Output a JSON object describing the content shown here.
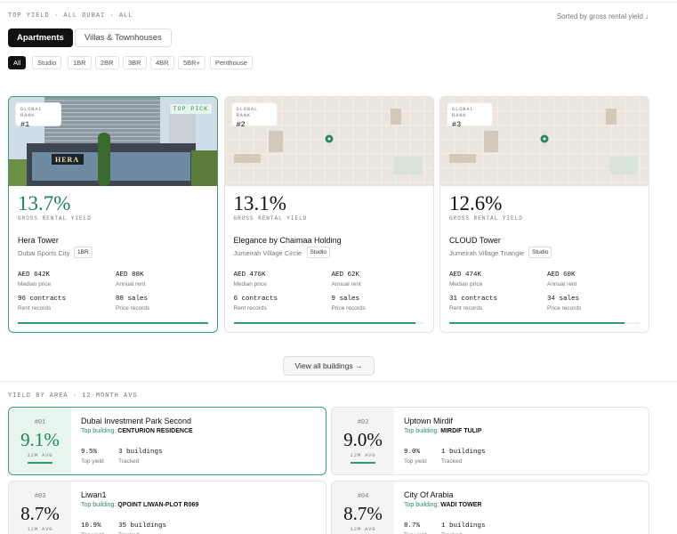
{
  "header": {
    "breadcrumb": "TOP YIELD · ALL DUBAI · ALL",
    "sort": "Sorted by gross rental yield ↓"
  },
  "tabs": [
    "Apartments",
    "Villas & Townhouses"
  ],
  "filters": [
    "All",
    "Studio",
    "1BR",
    "2BR",
    "3BR",
    "4BR",
    "5BR+",
    "Penthouse"
  ],
  "cards": [
    {
      "rank_label": "GLOBAL RANK",
      "rank": "#1",
      "badge": "TOP PICK",
      "photo_sign": "HERA",
      "yield": "13.7%",
      "yield_label": "GROSS RENTAL YIELD",
      "name": "Hera Tower",
      "location": "Dubai Sports City",
      "type": "1BR",
      "stats": [
        [
          "AED 642K",
          "Median price"
        ],
        [
          "AED 88K",
          "Annual rent"
        ],
        [
          "96 contracts",
          "Rent records"
        ],
        [
          "88 sales",
          "Price records"
        ]
      ]
    },
    {
      "rank_label": "GLOBAL RANK",
      "rank": "#2",
      "yield": "13.1%",
      "yield_label": "GROSS RENTAL YIELD",
      "name": "Elegance by Chaimaa Holding",
      "location": "Jumeirah Village Circle",
      "type": "Studio",
      "stats": [
        [
          "AED 476K",
          "Median price"
        ],
        [
          "AED 62K",
          "Annual rent"
        ],
        [
          "6 contracts",
          "Rent records"
        ],
        [
          "9 sales",
          "Price records"
        ]
      ]
    },
    {
      "rank_label": "GLOBAL RANK",
      "rank": "#3",
      "yield": "12.6%",
      "yield_label": "GROSS RENTAL YIELD",
      "name": "CLOUD Tower",
      "location": "Jumeirah Village Triangle",
      "type": "Studio",
      "stats": [
        [
          "AED 474K",
          "Median price"
        ],
        [
          "AED 60K",
          "Annual rent"
        ],
        [
          "31 contracts",
          "Rent records"
        ],
        [
          "34 sales",
          "Price records"
        ]
      ]
    }
  ],
  "view_all": "View all buildings →",
  "area_section": {
    "title": "YIELD BY AREA · 12-MONTH AVG",
    "areas": [
      {
        "rank": "#01",
        "yield": "9.1%",
        "avg_label": "12M AVG",
        "name": "Dubai Investment Park Second",
        "top_prefix": "Top building:",
        "top_building": "CENTURION RESIDENCE",
        "top_yield": "9.5%",
        "top_yield_label": "Top yield",
        "buildings": "3 buildings",
        "buildings_label": "Tracked"
      },
      {
        "rank": "#02",
        "yield": "9.0%",
        "avg_label": "12M AVG",
        "name": "Uptown Mirdif",
        "top_prefix": "Top building:",
        "top_building": "MIRDIF TULIP",
        "top_yield": "9.0%",
        "top_yield_label": "Top yield",
        "buildings": "1 buildings",
        "buildings_label": "Tracked"
      },
      {
        "rank": "#03",
        "yield": "8.7%",
        "avg_label": "12M AVG",
        "name": "Liwan1",
        "top_prefix": "Top building:",
        "top_building": "QPOINT LIWAN-PLOT R069",
        "top_yield": "10.9%",
        "top_yield_label": "Top yield",
        "buildings": "35 buildings",
        "buildings_label": "Tracked"
      },
      {
        "rank": "#04",
        "yield": "8.7%",
        "avg_label": "12M AVG",
        "name": "City Of Arabia",
        "top_prefix": "Top building:",
        "top_building": "WADI TOWER",
        "top_yield": "8.7%",
        "top_yield_label": "Top yield",
        "buildings": "1 buildings",
        "buildings_label": "Tracked"
      }
    ]
  }
}
